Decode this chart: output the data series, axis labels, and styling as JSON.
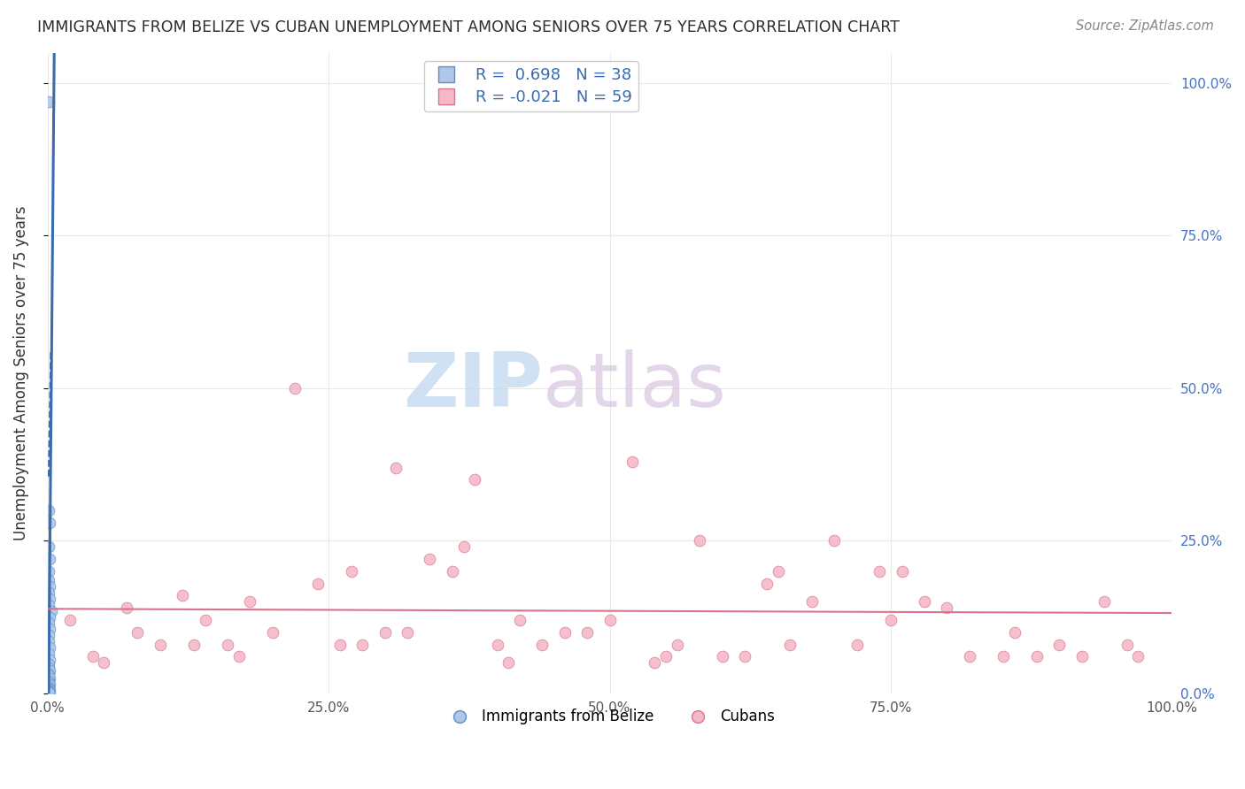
{
  "title": "IMMIGRANTS FROM BELIZE VS CUBAN UNEMPLOYMENT AMONG SENIORS OVER 75 YEARS CORRELATION CHART",
  "source": "Source: ZipAtlas.com",
  "ylabel": "Unemployment Among Seniors over 75 years",
  "legend_R_N": [
    {
      "R": 0.698,
      "N": 38,
      "dot_color": "#aec6e8",
      "dot_edge": "#5b8ec4",
      "line_color": "#3a6bad"
    },
    {
      "R": -0.021,
      "N": 59,
      "dot_color": "#f5b8c8",
      "dot_edge": "#d9738a",
      "line_color": "#d9738a"
    }
  ],
  "bottom_legend": [
    "Immigrants from Belize",
    "Cubans"
  ],
  "background_color": "#ffffff",
  "grid_color": "#e8e8e8",
  "title_color": "#2c2c2c",
  "watermark_zip_color": "#c5daf0",
  "watermark_atlas_color": "#d8c5e0",
  "xlim": [
    0.0,
    1.0
  ],
  "ylim": [
    0.0,
    1.05
  ],
  "blue_x": [
    0.001,
    0.001,
    0.002,
    0.001,
    0.002,
    0.001,
    0.001,
    0.002,
    0.001,
    0.002,
    0.001,
    0.003,
    0.002,
    0.001,
    0.002,
    0.001,
    0.001,
    0.002,
    0.001,
    0.002,
    0.001,
    0.001,
    0.002,
    0.001,
    0.001,
    0.002,
    0.001,
    0.001,
    0.002,
    0.001,
    0.001,
    0.001,
    0.002,
    0.001,
    0.001,
    0.001,
    0.002,
    0.001
  ],
  "blue_y": [
    0.97,
    0.3,
    0.28,
    0.24,
    0.22,
    0.2,
    0.185,
    0.175,
    0.165,
    0.155,
    0.145,
    0.135,
    0.125,
    0.115,
    0.105,
    0.095,
    0.085,
    0.075,
    0.065,
    0.055,
    0.048,
    0.042,
    0.038,
    0.032,
    0.028,
    0.024,
    0.02,
    0.017,
    0.014,
    0.011,
    0.009,
    0.007,
    0.005,
    0.004,
    0.003,
    0.002,
    0.001,
    0.001
  ],
  "pink_x": [
    0.22,
    0.28,
    0.31,
    0.38,
    0.41,
    0.1,
    0.14,
    0.18,
    0.24,
    0.27,
    0.34,
    0.37,
    0.44,
    0.48,
    0.52,
    0.54,
    0.58,
    0.62,
    0.65,
    0.7,
    0.74,
    0.78,
    0.82,
    0.86,
    0.9,
    0.94,
    0.97,
    0.05,
    0.08,
    0.13,
    0.17,
    0.42,
    0.46,
    0.56,
    0.6,
    0.66,
    0.72,
    0.76,
    0.8,
    0.85,
    0.92,
    0.02,
    0.07,
    0.12,
    0.2,
    0.26,
    0.32,
    0.36,
    0.5,
    0.64,
    0.68,
    0.88,
    0.96,
    0.04,
    0.16,
    0.3,
    0.4,
    0.55,
    0.75
  ],
  "pink_y": [
    0.5,
    0.08,
    0.37,
    0.35,
    0.05,
    0.08,
    0.12,
    0.15,
    0.18,
    0.2,
    0.22,
    0.24,
    0.08,
    0.1,
    0.38,
    0.05,
    0.25,
    0.06,
    0.2,
    0.25,
    0.2,
    0.15,
    0.06,
    0.1,
    0.08,
    0.15,
    0.06,
    0.05,
    0.1,
    0.08,
    0.06,
    0.12,
    0.1,
    0.08,
    0.06,
    0.08,
    0.08,
    0.2,
    0.14,
    0.06,
    0.06,
    0.12,
    0.14,
    0.16,
    0.1,
    0.08,
    0.1,
    0.2,
    0.12,
    0.18,
    0.15,
    0.06,
    0.08,
    0.06,
    0.08,
    0.1,
    0.08,
    0.06,
    0.12
  ]
}
